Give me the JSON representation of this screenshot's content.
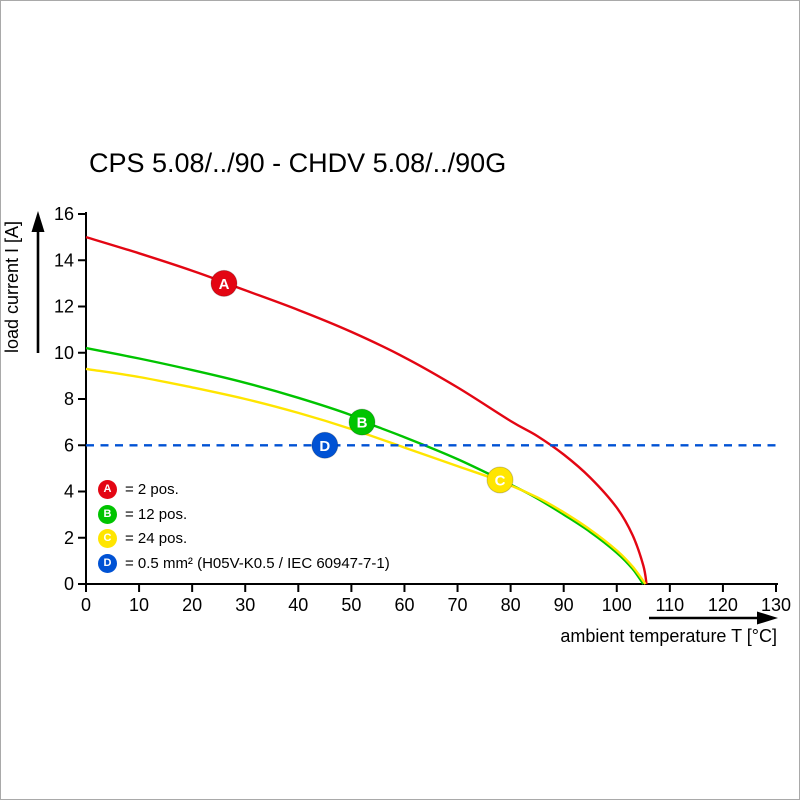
{
  "chart_data": {
    "type": "line",
    "title": "CPS 5.08/../90 - CHDV 5.08/../90G",
    "xlabel": "ambient temperature T [°C]",
    "ylabel": "load current I [A]",
    "xlim": [
      0,
      130
    ],
    "ylim": [
      0,
      16
    ],
    "xticks": [
      0,
      10,
      20,
      30,
      40,
      50,
      60,
      70,
      80,
      90,
      100,
      110,
      120,
      130
    ],
    "yticks": [
      0,
      2,
      4,
      6,
      8,
      10,
      12,
      14,
      16
    ],
    "grid": false,
    "legend_position": "inside-bottom-left",
    "series": [
      {
        "name": "A",
        "legend_label": "= 2 pos.",
        "color": "#e30613",
        "line_style": "solid",
        "marker": {
          "x": 26,
          "y": 13
        },
        "points": [
          [
            0,
            15
          ],
          [
            10,
            14.3
          ],
          [
            20,
            13.55
          ],
          [
            26,
            13.05
          ],
          [
            30,
            12.7
          ],
          [
            40,
            11.85
          ],
          [
            50,
            10.9
          ],
          [
            60,
            9.8
          ],
          [
            70,
            8.5
          ],
          [
            80,
            7.05
          ],
          [
            85,
            6.4
          ],
          [
            90,
            5.6
          ],
          [
            95,
            4.6
          ],
          [
            100,
            3.3
          ],
          [
            103,
            2.1
          ],
          [
            105,
            0.8
          ],
          [
            105.6,
            0
          ]
        ]
      },
      {
        "name": "B",
        "legend_label": "= 12 pos.",
        "color": "#00c400",
        "line_style": "solid",
        "marker": {
          "x": 52,
          "y": 7
        },
        "points": [
          [
            0,
            10.2
          ],
          [
            10,
            9.75
          ],
          [
            20,
            9.25
          ],
          [
            30,
            8.7
          ],
          [
            40,
            8.05
          ],
          [
            50,
            7.3
          ],
          [
            52,
            7.05
          ],
          [
            60,
            6.35
          ],
          [
            70,
            5.4
          ],
          [
            80,
            4.3
          ],
          [
            85,
            3.7
          ],
          [
            90,
            3.0
          ],
          [
            95,
            2.25
          ],
          [
            100,
            1.35
          ],
          [
            103,
            0.65
          ],
          [
            105,
            0
          ]
        ]
      },
      {
        "name": "C",
        "legend_label": "= 24 pos.",
        "color": "#ffe500",
        "line_style": "solid",
        "marker": {
          "x": 78,
          "y": 4.5
        },
        "points": [
          [
            0,
            9.3
          ],
          [
            10,
            8.95
          ],
          [
            20,
            8.5
          ],
          [
            30,
            8.0
          ],
          [
            40,
            7.4
          ],
          [
            50,
            6.7
          ],
          [
            60,
            5.9
          ],
          [
            70,
            5.1
          ],
          [
            78,
            4.45
          ],
          [
            85,
            3.75
          ],
          [
            90,
            3.1
          ],
          [
            95,
            2.35
          ],
          [
            100,
            1.45
          ],
          [
            103,
            0.75
          ],
          [
            105.4,
            0
          ]
        ]
      },
      {
        "name": "D",
        "legend_label": "= 0.5 mm² (H05V-K0.5 / IEC 60947-7-1)",
        "color": "#0052d4",
        "line_style": "dashed",
        "marker": {
          "x": 45,
          "y": 6
        },
        "points": [
          [
            0,
            6
          ],
          [
            130,
            6
          ]
        ]
      }
    ]
  }
}
